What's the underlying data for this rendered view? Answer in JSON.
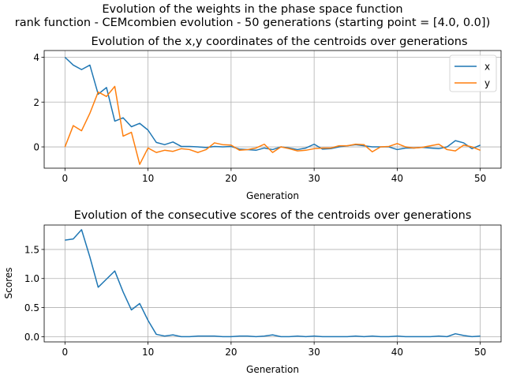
{
  "figure": {
    "suptitle_line1": "Evolution of the weights in the phase space  function",
    "suptitle_line2": "rank function - CEMcombien evolution - 50 generations (starting point = [4.0, 0.0])"
  },
  "chart_data": [
    {
      "type": "line",
      "title": "Evolution of the x,y coordinates of the centroids over generations",
      "xlabel": "Generation",
      "ylabel": "",
      "xlim": [
        -2.5,
        52.5
      ],
      "ylim": [
        -0.95,
        4.3
      ],
      "xticks": [
        0,
        10,
        20,
        30,
        40,
        50
      ],
      "yticks": [
        0,
        2,
        4
      ],
      "grid": true,
      "legend": "top-right",
      "x": [
        0,
        1,
        2,
        3,
        4,
        5,
        6,
        7,
        8,
        9,
        10,
        11,
        12,
        13,
        14,
        15,
        16,
        17,
        18,
        19,
        20,
        21,
        22,
        23,
        24,
        25,
        26,
        27,
        28,
        29,
        30,
        31,
        32,
        33,
        34,
        35,
        36,
        37,
        38,
        39,
        40,
        41,
        42,
        43,
        44,
        45,
        46,
        47,
        48,
        49,
        50
      ],
      "series": [
        {
          "name": "x",
          "color": "#1f77b4",
          "values": [
            4.0,
            3.65,
            3.45,
            3.65,
            2.35,
            2.65,
            1.15,
            1.3,
            0.9,
            1.05,
            0.75,
            0.2,
            0.1,
            0.22,
            0.02,
            0.02,
            0.0,
            -0.03,
            0.02,
            0.0,
            0.02,
            -0.1,
            -0.12,
            -0.15,
            -0.05,
            -0.12,
            0.0,
            -0.05,
            -0.12,
            -0.05,
            0.12,
            -0.1,
            -0.08,
            0.0,
            0.05,
            0.1,
            0.05,
            0.0,
            0.0,
            0.0,
            -0.12,
            -0.05,
            -0.05,
            -0.02,
            -0.05,
            -0.08,
            0.0,
            0.28,
            0.18,
            -0.08,
            0.08
          ]
        },
        {
          "name": "y",
          "color": "#ff7f0e",
          "values": [
            0.0,
            0.95,
            0.72,
            1.5,
            2.45,
            2.25,
            2.7,
            0.48,
            0.65,
            -0.78,
            -0.05,
            -0.25,
            -0.15,
            -0.2,
            -0.08,
            -0.12,
            -0.25,
            -0.12,
            0.18,
            0.1,
            0.08,
            -0.15,
            -0.12,
            -0.05,
            0.12,
            -0.25,
            0.0,
            -0.08,
            -0.18,
            -0.15,
            -0.08,
            -0.05,
            -0.05,
            0.05,
            0.05,
            0.12,
            0.1,
            -0.22,
            0.0,
            0.02,
            0.15,
            0.0,
            -0.05,
            -0.02,
            0.05,
            0.12,
            -0.12,
            -0.18,
            0.08,
            0.0,
            -0.15
          ]
        }
      ]
    },
    {
      "type": "line",
      "title": "Evolution of the consecutive scores of the centroids over generations",
      "xlabel": "Generation",
      "ylabel": "Scores",
      "xlim": [
        -2.5,
        52.5
      ],
      "ylim": [
        -0.09,
        1.92
      ],
      "xticks": [
        0,
        10,
        20,
        30,
        40,
        50
      ],
      "yticks": [
        0.0,
        0.5,
        1.0,
        1.5
      ],
      "ytick_labels": [
        "0.0",
        "0.5",
        "1.0",
        "1.5"
      ],
      "grid": true,
      "x": [
        0,
        1,
        2,
        3,
        4,
        5,
        6,
        7,
        8,
        9,
        10,
        11,
        12,
        13,
        14,
        15,
        16,
        17,
        18,
        19,
        20,
        21,
        22,
        23,
        24,
        25,
        26,
        27,
        28,
        29,
        30,
        31,
        32,
        33,
        34,
        35,
        36,
        37,
        38,
        39,
        40,
        41,
        42,
        43,
        44,
        45,
        46,
        47,
        48,
        49,
        50
      ],
      "series": [
        {
          "name": "",
          "color": "#1f77b4",
          "values": [
            1.66,
            1.68,
            1.84,
            1.37,
            0.85,
            0.99,
            1.13,
            0.77,
            0.46,
            0.57,
            0.28,
            0.04,
            0.01,
            0.03,
            0.0,
            0.0,
            0.01,
            0.01,
            0.01,
            0.0,
            0.0,
            0.01,
            0.01,
            0.0,
            0.01,
            0.03,
            0.0,
            0.0,
            0.01,
            0.0,
            0.01,
            0.0,
            0.0,
            0.0,
            0.0,
            0.01,
            0.0,
            0.01,
            0.0,
            0.0,
            0.01,
            0.0,
            0.0,
            0.0,
            0.0,
            0.01,
            0.0,
            0.05,
            0.02,
            0.0,
            0.01
          ]
        }
      ]
    }
  ]
}
